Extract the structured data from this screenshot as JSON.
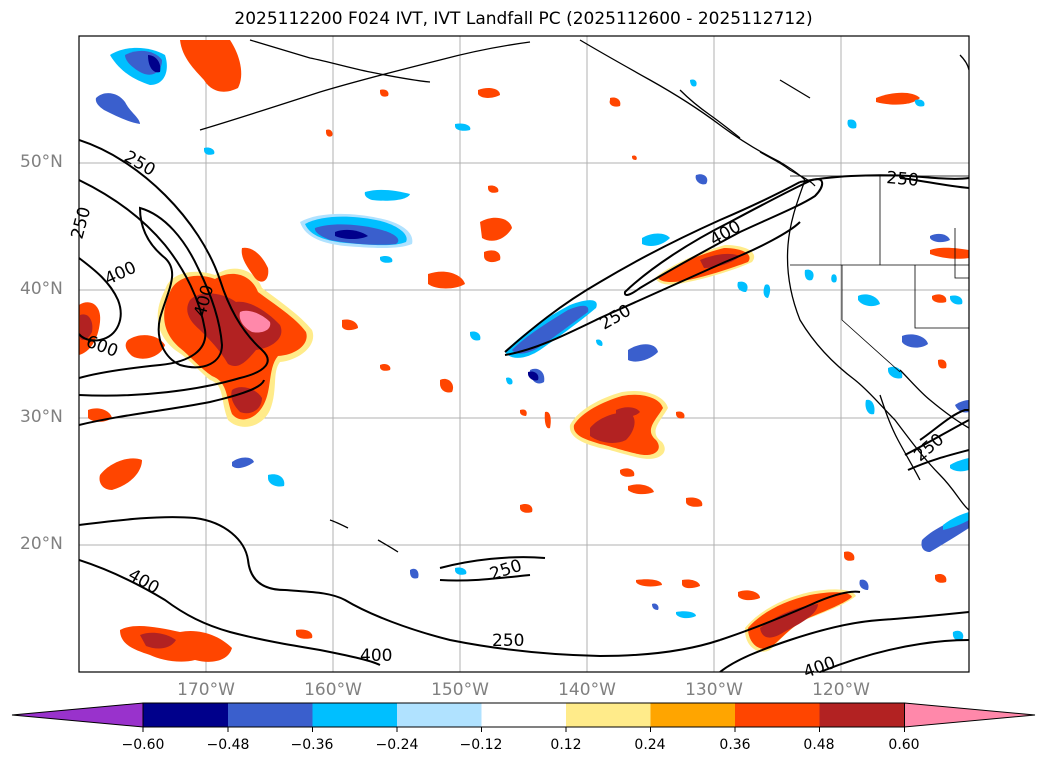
{
  "title": "2025112200 F024 IVT, IVT Landfall PC (2025112600 - 2025112712)",
  "lat_labels": [
    "50°N",
    "40°N",
    "30°N",
    "20°N"
  ],
  "lon_labels": [
    "170°W",
    "160°W",
    "150°W",
    "140°W",
    "130°W",
    "120°W"
  ],
  "contour_labels": [
    "250",
    "250",
    "400",
    "400",
    "600",
    "250",
    "400",
    "250",
    "250",
    "400",
    "250",
    "400",
    "250",
    "400"
  ],
  "colorbar": {
    "ticks": [
      "−0.60",
      "−0.48",
      "−0.36",
      "−0.24",
      "−0.12",
      "0.12",
      "0.24",
      "0.36",
      "0.48",
      "0.60"
    ],
    "colors": [
      "#9932cc",
      "#00008b",
      "#3a5fcd",
      "#00bfff",
      "#b0e2ff",
      "#ffffff",
      "#ffeb8a",
      "#ffa500",
      "#ff4500",
      "#b22222",
      "#ff88aa"
    ]
  },
  "colors": {
    "pos_light": "#ffeb8a",
    "pos_orange": "#ffa500",
    "pos_red": "#ff4500",
    "pos_dark": "#b22222",
    "pos_pink": "#ff88aa",
    "neg_light": "#b0e2ff",
    "neg_sky": "#00bfff",
    "neg_blue": "#3a5fcd",
    "neg_navy": "#00008b"
  }
}
